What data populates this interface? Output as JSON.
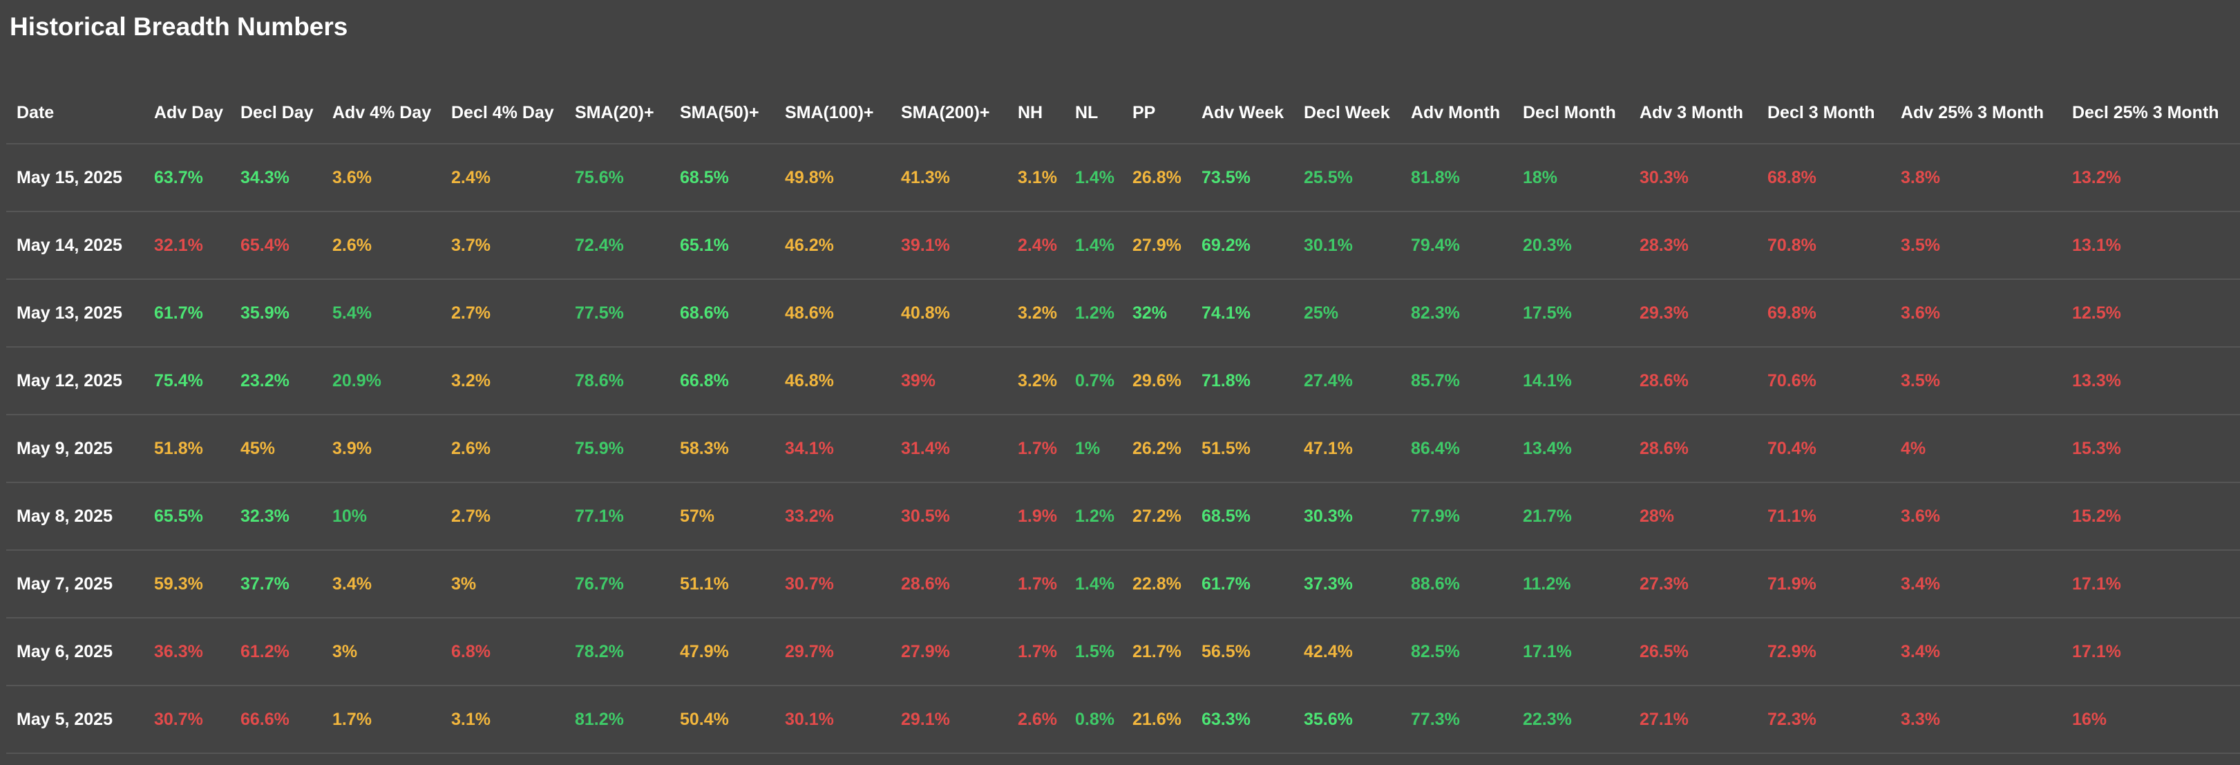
{
  "page": {
    "title": "Historical Breadth Numbers"
  },
  "table": {
    "columns": [
      "Date",
      "Adv Day",
      "Decl Day",
      "Adv 4% Day",
      "Decl 4% Day",
      "SMA(20)+",
      "SMA(50)+",
      "SMA(100)+",
      "SMA(200)+",
      "NH",
      "NL",
      "PP",
      "Adv Week",
      "Decl Week",
      "Adv Month",
      "Decl Month",
      "Adv 3 Month",
      "Decl 3 Month",
      "Adv 25% 3 Month",
      "Decl 25% 3 Month"
    ],
    "rows": [
      {
        "date": "May 15, 2025",
        "cells": [
          {
            "v": "63.7%",
            "c": "green"
          },
          {
            "v": "34.3%",
            "c": "green"
          },
          {
            "v": "3.6%",
            "c": "yellow"
          },
          {
            "v": "2.4%",
            "c": "yellow"
          },
          {
            "v": "75.6%",
            "c": "lgreen"
          },
          {
            "v": "68.5%",
            "c": "green"
          },
          {
            "v": "49.8%",
            "c": "yellow"
          },
          {
            "v": "41.3%",
            "c": "yellow"
          },
          {
            "v": "3.1%",
            "c": "yellow"
          },
          {
            "v": "1.4%",
            "c": "lgreen"
          },
          {
            "v": "26.8%",
            "c": "yellow"
          },
          {
            "v": "73.5%",
            "c": "green"
          },
          {
            "v": "25.5%",
            "c": "lgreen"
          },
          {
            "v": "81.8%",
            "c": "lgreen"
          },
          {
            "v": "18%",
            "c": "lgreen"
          },
          {
            "v": "30.3%",
            "c": "red"
          },
          {
            "v": "68.8%",
            "c": "red"
          },
          {
            "v": "3.8%",
            "c": "red"
          },
          {
            "v": "13.2%",
            "c": "red"
          }
        ]
      },
      {
        "date": "May 14, 2025",
        "cells": [
          {
            "v": "32.1%",
            "c": "red"
          },
          {
            "v": "65.4%",
            "c": "red"
          },
          {
            "v": "2.6%",
            "c": "yellow"
          },
          {
            "v": "3.7%",
            "c": "yellow"
          },
          {
            "v": "72.4%",
            "c": "lgreen"
          },
          {
            "v": "65.1%",
            "c": "green"
          },
          {
            "v": "46.2%",
            "c": "yellow"
          },
          {
            "v": "39.1%",
            "c": "red"
          },
          {
            "v": "2.4%",
            "c": "red"
          },
          {
            "v": "1.4%",
            "c": "lgreen"
          },
          {
            "v": "27.9%",
            "c": "yellow"
          },
          {
            "v": "69.2%",
            "c": "green"
          },
          {
            "v": "30.1%",
            "c": "lgreen"
          },
          {
            "v": "79.4%",
            "c": "lgreen"
          },
          {
            "v": "20.3%",
            "c": "lgreen"
          },
          {
            "v": "28.3%",
            "c": "red"
          },
          {
            "v": "70.8%",
            "c": "red"
          },
          {
            "v": "3.5%",
            "c": "red"
          },
          {
            "v": "13.1%",
            "c": "red"
          }
        ]
      },
      {
        "date": "May 13, 2025",
        "cells": [
          {
            "v": "61.7%",
            "c": "green"
          },
          {
            "v": "35.9%",
            "c": "green"
          },
          {
            "v": "5.4%",
            "c": "lgreen"
          },
          {
            "v": "2.7%",
            "c": "yellow"
          },
          {
            "v": "77.5%",
            "c": "lgreen"
          },
          {
            "v": "68.6%",
            "c": "green"
          },
          {
            "v": "48.6%",
            "c": "yellow"
          },
          {
            "v": "40.8%",
            "c": "yellow"
          },
          {
            "v": "3.2%",
            "c": "yellow"
          },
          {
            "v": "1.2%",
            "c": "lgreen"
          },
          {
            "v": "32%",
            "c": "green"
          },
          {
            "v": "74.1%",
            "c": "green"
          },
          {
            "v": "25%",
            "c": "lgreen"
          },
          {
            "v": "82.3%",
            "c": "lgreen"
          },
          {
            "v": "17.5%",
            "c": "lgreen"
          },
          {
            "v": "29.3%",
            "c": "red"
          },
          {
            "v": "69.8%",
            "c": "red"
          },
          {
            "v": "3.6%",
            "c": "red"
          },
          {
            "v": "12.5%",
            "c": "red"
          }
        ]
      },
      {
        "date": "May 12, 2025",
        "cells": [
          {
            "v": "75.4%",
            "c": "green"
          },
          {
            "v": "23.2%",
            "c": "green"
          },
          {
            "v": "20.9%",
            "c": "lgreen"
          },
          {
            "v": "3.2%",
            "c": "yellow"
          },
          {
            "v": "78.6%",
            "c": "lgreen"
          },
          {
            "v": "66.8%",
            "c": "green"
          },
          {
            "v": "46.8%",
            "c": "yellow"
          },
          {
            "v": "39%",
            "c": "red"
          },
          {
            "v": "3.2%",
            "c": "yellow"
          },
          {
            "v": "0.7%",
            "c": "lgreen"
          },
          {
            "v": "29.6%",
            "c": "yellow"
          },
          {
            "v": "71.8%",
            "c": "green"
          },
          {
            "v": "27.4%",
            "c": "lgreen"
          },
          {
            "v": "85.7%",
            "c": "lgreen"
          },
          {
            "v": "14.1%",
            "c": "lgreen"
          },
          {
            "v": "28.6%",
            "c": "red"
          },
          {
            "v": "70.6%",
            "c": "red"
          },
          {
            "v": "3.5%",
            "c": "red"
          },
          {
            "v": "13.3%",
            "c": "red"
          }
        ]
      },
      {
        "date": "May 9, 2025",
        "cells": [
          {
            "v": "51.8%",
            "c": "yellow"
          },
          {
            "v": "45%",
            "c": "yellow"
          },
          {
            "v": "3.9%",
            "c": "yellow"
          },
          {
            "v": "2.6%",
            "c": "yellow"
          },
          {
            "v": "75.9%",
            "c": "lgreen"
          },
          {
            "v": "58.3%",
            "c": "yellow"
          },
          {
            "v": "34.1%",
            "c": "red"
          },
          {
            "v": "31.4%",
            "c": "red"
          },
          {
            "v": "1.7%",
            "c": "red"
          },
          {
            "v": "1%",
            "c": "lgreen"
          },
          {
            "v": "26.2%",
            "c": "yellow"
          },
          {
            "v": "51.5%",
            "c": "yellow"
          },
          {
            "v": "47.1%",
            "c": "yellow"
          },
          {
            "v": "86.4%",
            "c": "lgreen"
          },
          {
            "v": "13.4%",
            "c": "lgreen"
          },
          {
            "v": "28.6%",
            "c": "red"
          },
          {
            "v": "70.4%",
            "c": "red"
          },
          {
            "v": "4%",
            "c": "red"
          },
          {
            "v": "15.3%",
            "c": "red"
          }
        ]
      },
      {
        "date": "May 8, 2025",
        "cells": [
          {
            "v": "65.5%",
            "c": "green"
          },
          {
            "v": "32.3%",
            "c": "green"
          },
          {
            "v": "10%",
            "c": "lgreen"
          },
          {
            "v": "2.7%",
            "c": "yellow"
          },
          {
            "v": "77.1%",
            "c": "lgreen"
          },
          {
            "v": "57%",
            "c": "yellow"
          },
          {
            "v": "33.2%",
            "c": "red"
          },
          {
            "v": "30.5%",
            "c": "red"
          },
          {
            "v": "1.9%",
            "c": "red"
          },
          {
            "v": "1.2%",
            "c": "lgreen"
          },
          {
            "v": "27.2%",
            "c": "yellow"
          },
          {
            "v": "68.5%",
            "c": "green"
          },
          {
            "v": "30.3%",
            "c": "green"
          },
          {
            "v": "77.9%",
            "c": "lgreen"
          },
          {
            "v": "21.7%",
            "c": "lgreen"
          },
          {
            "v": "28%",
            "c": "red"
          },
          {
            "v": "71.1%",
            "c": "red"
          },
          {
            "v": "3.6%",
            "c": "red"
          },
          {
            "v": "15.2%",
            "c": "red"
          }
        ]
      },
      {
        "date": "May 7, 2025",
        "cells": [
          {
            "v": "59.3%",
            "c": "yellow"
          },
          {
            "v": "37.7%",
            "c": "green"
          },
          {
            "v": "3.4%",
            "c": "yellow"
          },
          {
            "v": "3%",
            "c": "yellow"
          },
          {
            "v": "76.7%",
            "c": "lgreen"
          },
          {
            "v": "51.1%",
            "c": "yellow"
          },
          {
            "v": "30.7%",
            "c": "red"
          },
          {
            "v": "28.6%",
            "c": "red"
          },
          {
            "v": "1.7%",
            "c": "red"
          },
          {
            "v": "1.4%",
            "c": "lgreen"
          },
          {
            "v": "22.8%",
            "c": "yellow"
          },
          {
            "v": "61.7%",
            "c": "green"
          },
          {
            "v": "37.3%",
            "c": "green"
          },
          {
            "v": "88.6%",
            "c": "lgreen"
          },
          {
            "v": "11.2%",
            "c": "lgreen"
          },
          {
            "v": "27.3%",
            "c": "red"
          },
          {
            "v": "71.9%",
            "c": "red"
          },
          {
            "v": "3.4%",
            "c": "red"
          },
          {
            "v": "17.1%",
            "c": "red"
          }
        ]
      },
      {
        "date": "May 6, 2025",
        "cells": [
          {
            "v": "36.3%",
            "c": "red"
          },
          {
            "v": "61.2%",
            "c": "red"
          },
          {
            "v": "3%",
            "c": "yellow"
          },
          {
            "v": "6.8%",
            "c": "red"
          },
          {
            "v": "78.2%",
            "c": "lgreen"
          },
          {
            "v": "47.9%",
            "c": "yellow"
          },
          {
            "v": "29.7%",
            "c": "red"
          },
          {
            "v": "27.9%",
            "c": "red"
          },
          {
            "v": "1.7%",
            "c": "red"
          },
          {
            "v": "1.5%",
            "c": "lgreen"
          },
          {
            "v": "21.7%",
            "c": "yellow"
          },
          {
            "v": "56.5%",
            "c": "yellow"
          },
          {
            "v": "42.4%",
            "c": "yellow"
          },
          {
            "v": "82.5%",
            "c": "lgreen"
          },
          {
            "v": "17.1%",
            "c": "lgreen"
          },
          {
            "v": "26.5%",
            "c": "red"
          },
          {
            "v": "72.9%",
            "c": "red"
          },
          {
            "v": "3.4%",
            "c": "red"
          },
          {
            "v": "17.1%",
            "c": "red"
          }
        ]
      },
      {
        "date": "May 5, 2025",
        "cells": [
          {
            "v": "30.7%",
            "c": "red"
          },
          {
            "v": "66.6%",
            "c": "red"
          },
          {
            "v": "1.7%",
            "c": "yellow"
          },
          {
            "v": "3.1%",
            "c": "yellow"
          },
          {
            "v": "81.2%",
            "c": "lgreen"
          },
          {
            "v": "50.4%",
            "c": "yellow"
          },
          {
            "v": "30.1%",
            "c": "red"
          },
          {
            "v": "29.1%",
            "c": "red"
          },
          {
            "v": "2.6%",
            "c": "red"
          },
          {
            "v": "0.8%",
            "c": "lgreen"
          },
          {
            "v": "21.6%",
            "c": "yellow"
          },
          {
            "v": "63.3%",
            "c": "green"
          },
          {
            "v": "35.6%",
            "c": "green"
          },
          {
            "v": "77.3%",
            "c": "lgreen"
          },
          {
            "v": "22.3%",
            "c": "lgreen"
          },
          {
            "v": "27.1%",
            "c": "red"
          },
          {
            "v": "72.3%",
            "c": "red"
          },
          {
            "v": "3.3%",
            "c": "red"
          },
          {
            "v": "16%",
            "c": "red"
          }
        ]
      }
    ]
  },
  "colors": {
    "background": "#434343",
    "green": "#4ce574",
    "lgreen": "#3fca68",
    "yellow": "#f2b63d",
    "red": "#e34b4b",
    "divider": "#565656"
  }
}
